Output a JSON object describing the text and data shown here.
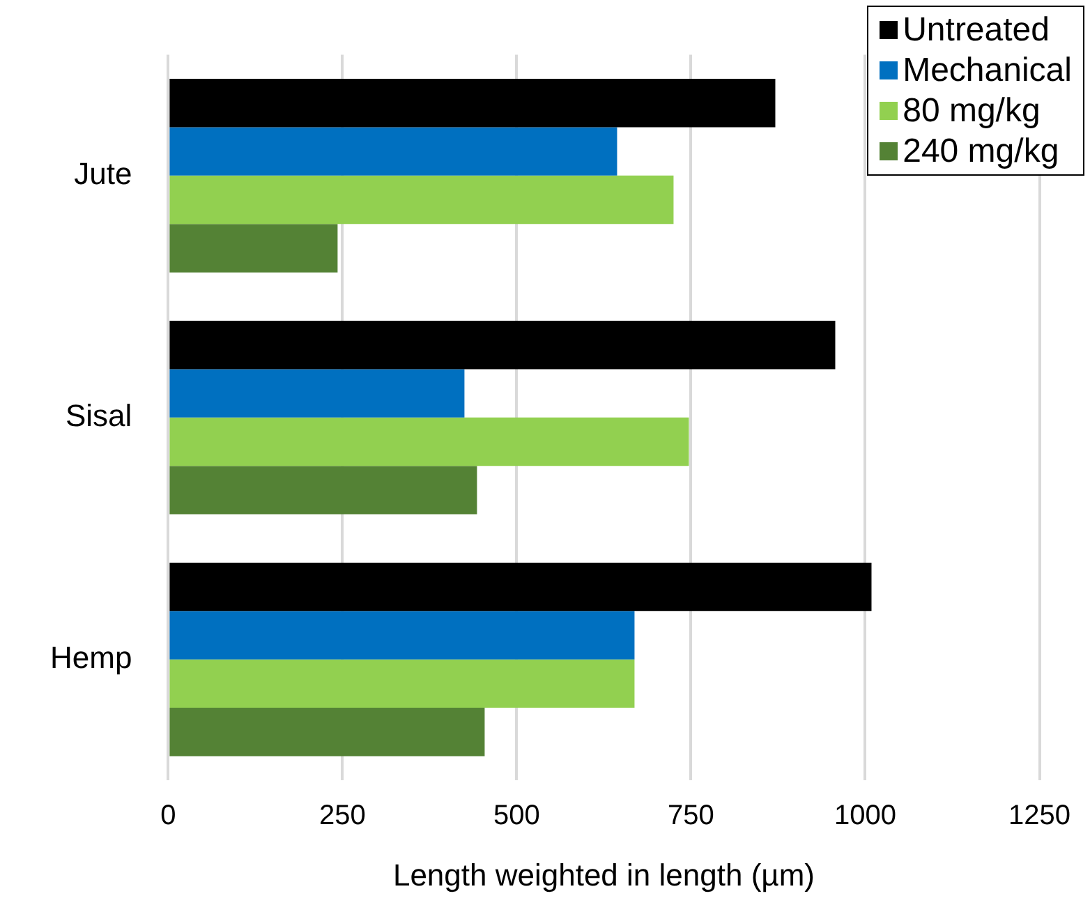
{
  "chart_data": {
    "type": "bar",
    "orientation": "horizontal",
    "xlabel": "Length weighted in length (µm)",
    "categories": [
      "Jute",
      "Sisal",
      "Hemp"
    ],
    "series": [
      {
        "name": "Untreated",
        "color": "#000000",
        "values": [
          871,
          957,
          1009
        ]
      },
      {
        "name": "Mechanical",
        "color": "#0070c0",
        "values": [
          644,
          425,
          669
        ]
      },
      {
        "name": "80 mg/kg",
        "color": "#92d050",
        "values": [
          725,
          747,
          669
        ]
      },
      {
        "name": "240 mg/kg",
        "color": "#548235",
        "values": [
          243,
          443,
          454
        ]
      }
    ],
    "xlim": [
      0,
      1250
    ],
    "xticks": [
      0,
      250,
      500,
      750,
      1000,
      1250
    ],
    "grid": "x",
    "legend": "top right"
  }
}
